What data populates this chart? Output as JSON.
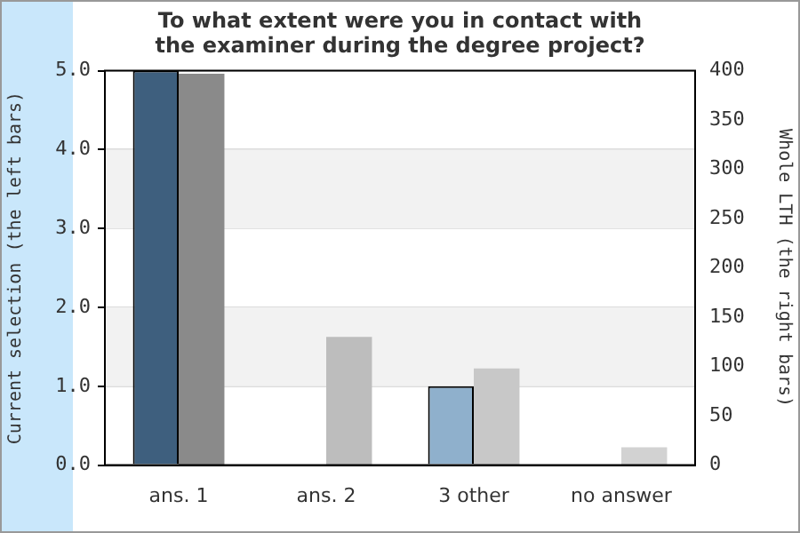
{
  "chart_data": {
    "type": "bar",
    "title": "To what extent were you in contact with\nthe examiner during the degree project?",
    "ylabel": "Current selection (the left bars)",
    "y2label": "Whole LTH (the right bars)",
    "categories": [
      "ans. 1",
      "ans. 2",
      "3 other",
      "no answer"
    ],
    "series": [
      {
        "colors": [
          "#3e5f7e",
          "#3e5f7e",
          "#8fb0cc",
          "#8fb0cc"
        ],
        "values": [
          5,
          0,
          1,
          0
        ]
      },
      {
        "axis": "y2",
        "colors": [
          "#8a8a8a",
          "#bdbdbd",
          "#c8c8c8",
          "#d2d2d2"
        ],
        "values": [
          397,
          130,
          98,
          18
        ]
      }
    ],
    "ylim": [
      0,
      5
    ],
    "yticks": [
      {
        "value": 0,
        "label": "0.0"
      },
      {
        "value": 1,
        "label": "1.0"
      },
      {
        "value": 2,
        "label": "2.0"
      },
      {
        "value": 3,
        "label": "3.0"
      },
      {
        "value": 4,
        "label": "4.0"
      },
      {
        "value": 5,
        "label": "5.0"
      }
    ],
    "y2lim": [
      0,
      400
    ],
    "y2ticks": [
      0,
      50,
      100,
      150,
      200,
      250,
      300,
      350,
      400
    ],
    "grid": "y",
    "legend": false
  }
}
